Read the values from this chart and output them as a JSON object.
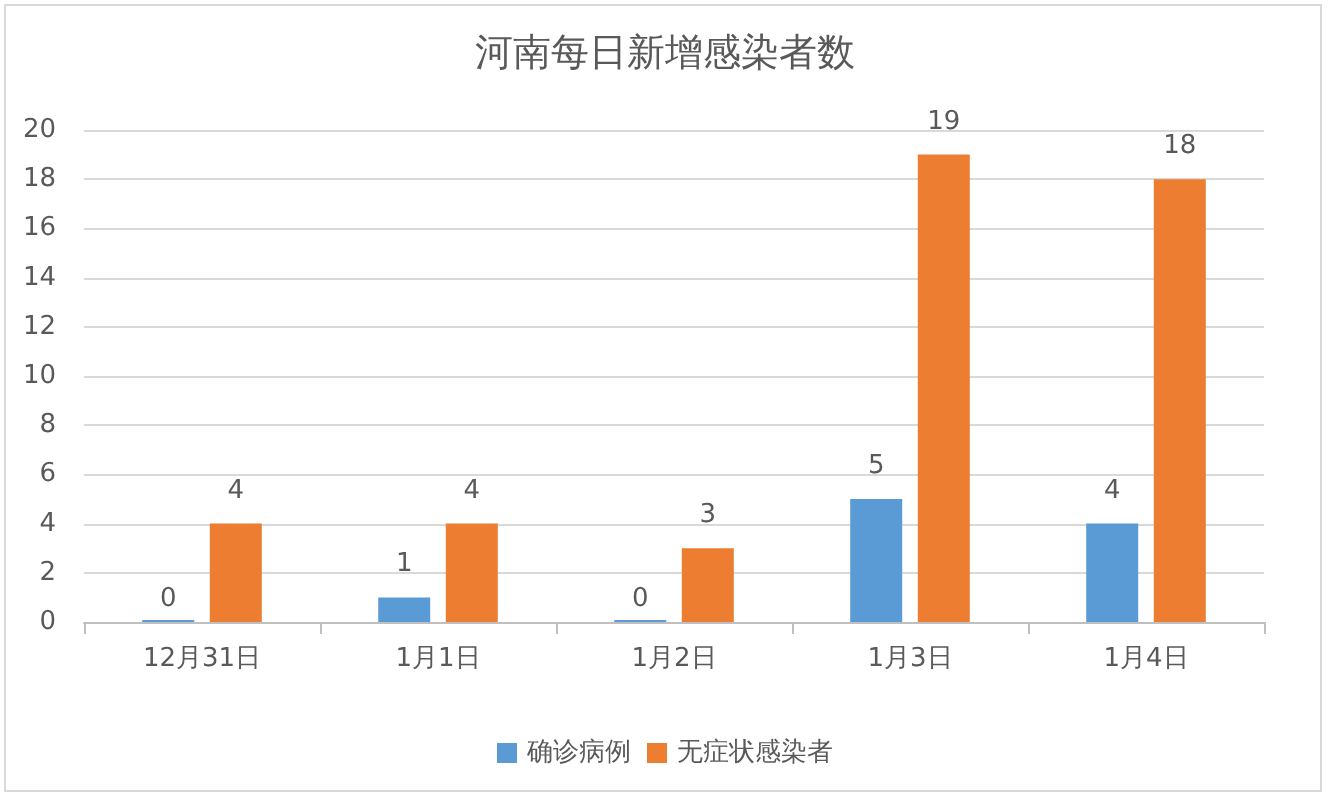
{
  "chart_data": {
    "type": "bar",
    "title": "河南每日新增感染者数",
    "categories": [
      "12月31日",
      "1月1日",
      "1月2日",
      "1月3日",
      "1月4日"
    ],
    "series": [
      {
        "name": "确诊病例",
        "color": "#5b9bd5",
        "values": [
          0,
          1,
          0,
          5,
          4
        ]
      },
      {
        "name": "无症状感染者",
        "color": "#ed7d31",
        "values": [
          4,
          4,
          3,
          19,
          18
        ]
      }
    ],
    "ylim": [
      0,
      20
    ],
    "yticks": [
      0,
      2,
      4,
      6,
      8,
      10,
      12,
      14,
      16,
      18,
      20
    ],
    "grid": "y",
    "legend": "bottom",
    "data_labels": true
  }
}
